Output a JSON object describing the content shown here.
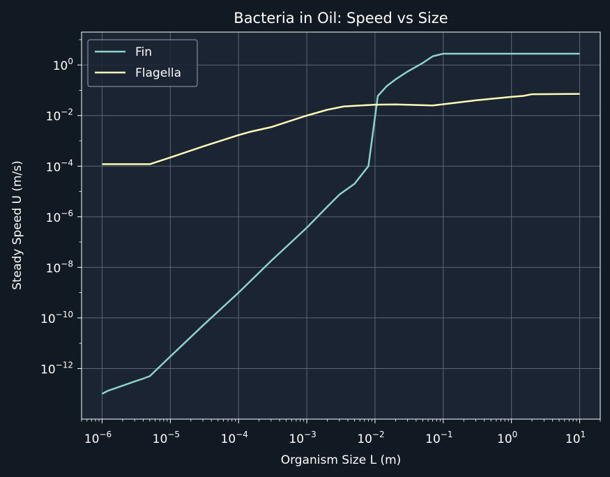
{
  "chart_data": {
    "type": "line",
    "title": "Bacteria in Oil: Speed vs Size",
    "xlabel": "Organism Size L (m)",
    "ylabel": "Steady Speed U (m/s)",
    "x_scale": "log",
    "y_scale": "log",
    "xlim": [
      5e-07,
      20
    ],
    "ylim": [
      1e-14,
      20
    ],
    "x_ticks": [
      {
        "value": 1e-06,
        "base": "10",
        "exp": "−6"
      },
      {
        "value": 1e-05,
        "base": "10",
        "exp": "−5"
      },
      {
        "value": 0.0001,
        "base": "10",
        "exp": "−4"
      },
      {
        "value": 0.001,
        "base": "10",
        "exp": "−3"
      },
      {
        "value": 0.01,
        "base": "10",
        "exp": "−2"
      },
      {
        "value": 0.1,
        "base": "10",
        "exp": "−1"
      },
      {
        "value": 1,
        "base": "10",
        "exp": "0"
      },
      {
        "value": 10,
        "base": "10",
        "exp": "1"
      }
    ],
    "y_ticks": [
      {
        "value": 1e-12,
        "base": "10",
        "exp": "−12"
      },
      {
        "value": 1e-10,
        "base": "10",
        "exp": "−10"
      },
      {
        "value": 1e-08,
        "base": "10",
        "exp": "−8"
      },
      {
        "value": 1e-06,
        "base": "10",
        "exp": "−6"
      },
      {
        "value": 0.0001,
        "base": "10",
        "exp": "−4"
      },
      {
        "value": 0.01,
        "base": "10",
        "exp": "−2"
      },
      {
        "value": 1,
        "base": "10",
        "exp": "0"
      }
    ],
    "grid": true,
    "legend_position": "top-left",
    "colors": {
      "background": "#111a23",
      "plot_background": "#1b2433",
      "grid": "#5d6674",
      "text": "#ffffff"
    },
    "series": [
      {
        "name": "Fin",
        "color": "#8dd3c7",
        "points": [
          [
            1e-06,
            1e-13
          ],
          [
            1.2e-06,
            1.3e-13
          ],
          [
            2e-06,
            2.1e-13
          ],
          [
            3e-06,
            3.1e-13
          ],
          [
            4e-06,
            4e-13
          ],
          [
            5e-06,
            5e-13
          ],
          [
            1e-05,
            3e-12
          ],
          [
            3e-05,
            5e-11
          ],
          [
            0.0001,
            1e-09
          ],
          [
            0.0003,
            1.8e-08
          ],
          [
            0.001,
            3.7e-07
          ],
          [
            0.002,
            2.5e-06
          ],
          [
            0.003,
            7.5e-06
          ],
          [
            0.005,
            2e-05
          ],
          [
            0.008,
            0.0001
          ],
          [
            0.011,
            0.06
          ],
          [
            0.015,
            0.15
          ],
          [
            0.02,
            0.27
          ],
          [
            0.03,
            0.55
          ],
          [
            0.05,
            1.2
          ],
          [
            0.07,
            2.2
          ],
          [
            0.1,
            2.8
          ],
          [
            0.3,
            2.8
          ],
          [
            1,
            2.8
          ],
          [
            3,
            2.8
          ],
          [
            10,
            2.8
          ]
        ]
      },
      {
        "name": "Flagella",
        "color": "#ffffb3",
        "points": [
          [
            1e-06,
            0.00012
          ],
          [
            5e-06,
            0.00012
          ],
          [
            1e-05,
            0.00022
          ],
          [
            3e-05,
            0.0006
          ],
          [
            0.0001,
            0.0017
          ],
          [
            0.00015,
            0.0023
          ],
          [
            0.0003,
            0.0035
          ],
          [
            0.001,
            0.01
          ],
          [
            0.002,
            0.017
          ],
          [
            0.0035,
            0.023
          ],
          [
            0.01,
            0.027
          ],
          [
            0.02,
            0.0275
          ],
          [
            0.07,
            0.025
          ],
          [
            0.1,
            0.028
          ],
          [
            0.3,
            0.04
          ],
          [
            1,
            0.055
          ],
          [
            1.5,
            0.06
          ],
          [
            2,
            0.07
          ],
          [
            10,
            0.072
          ]
        ]
      }
    ]
  }
}
